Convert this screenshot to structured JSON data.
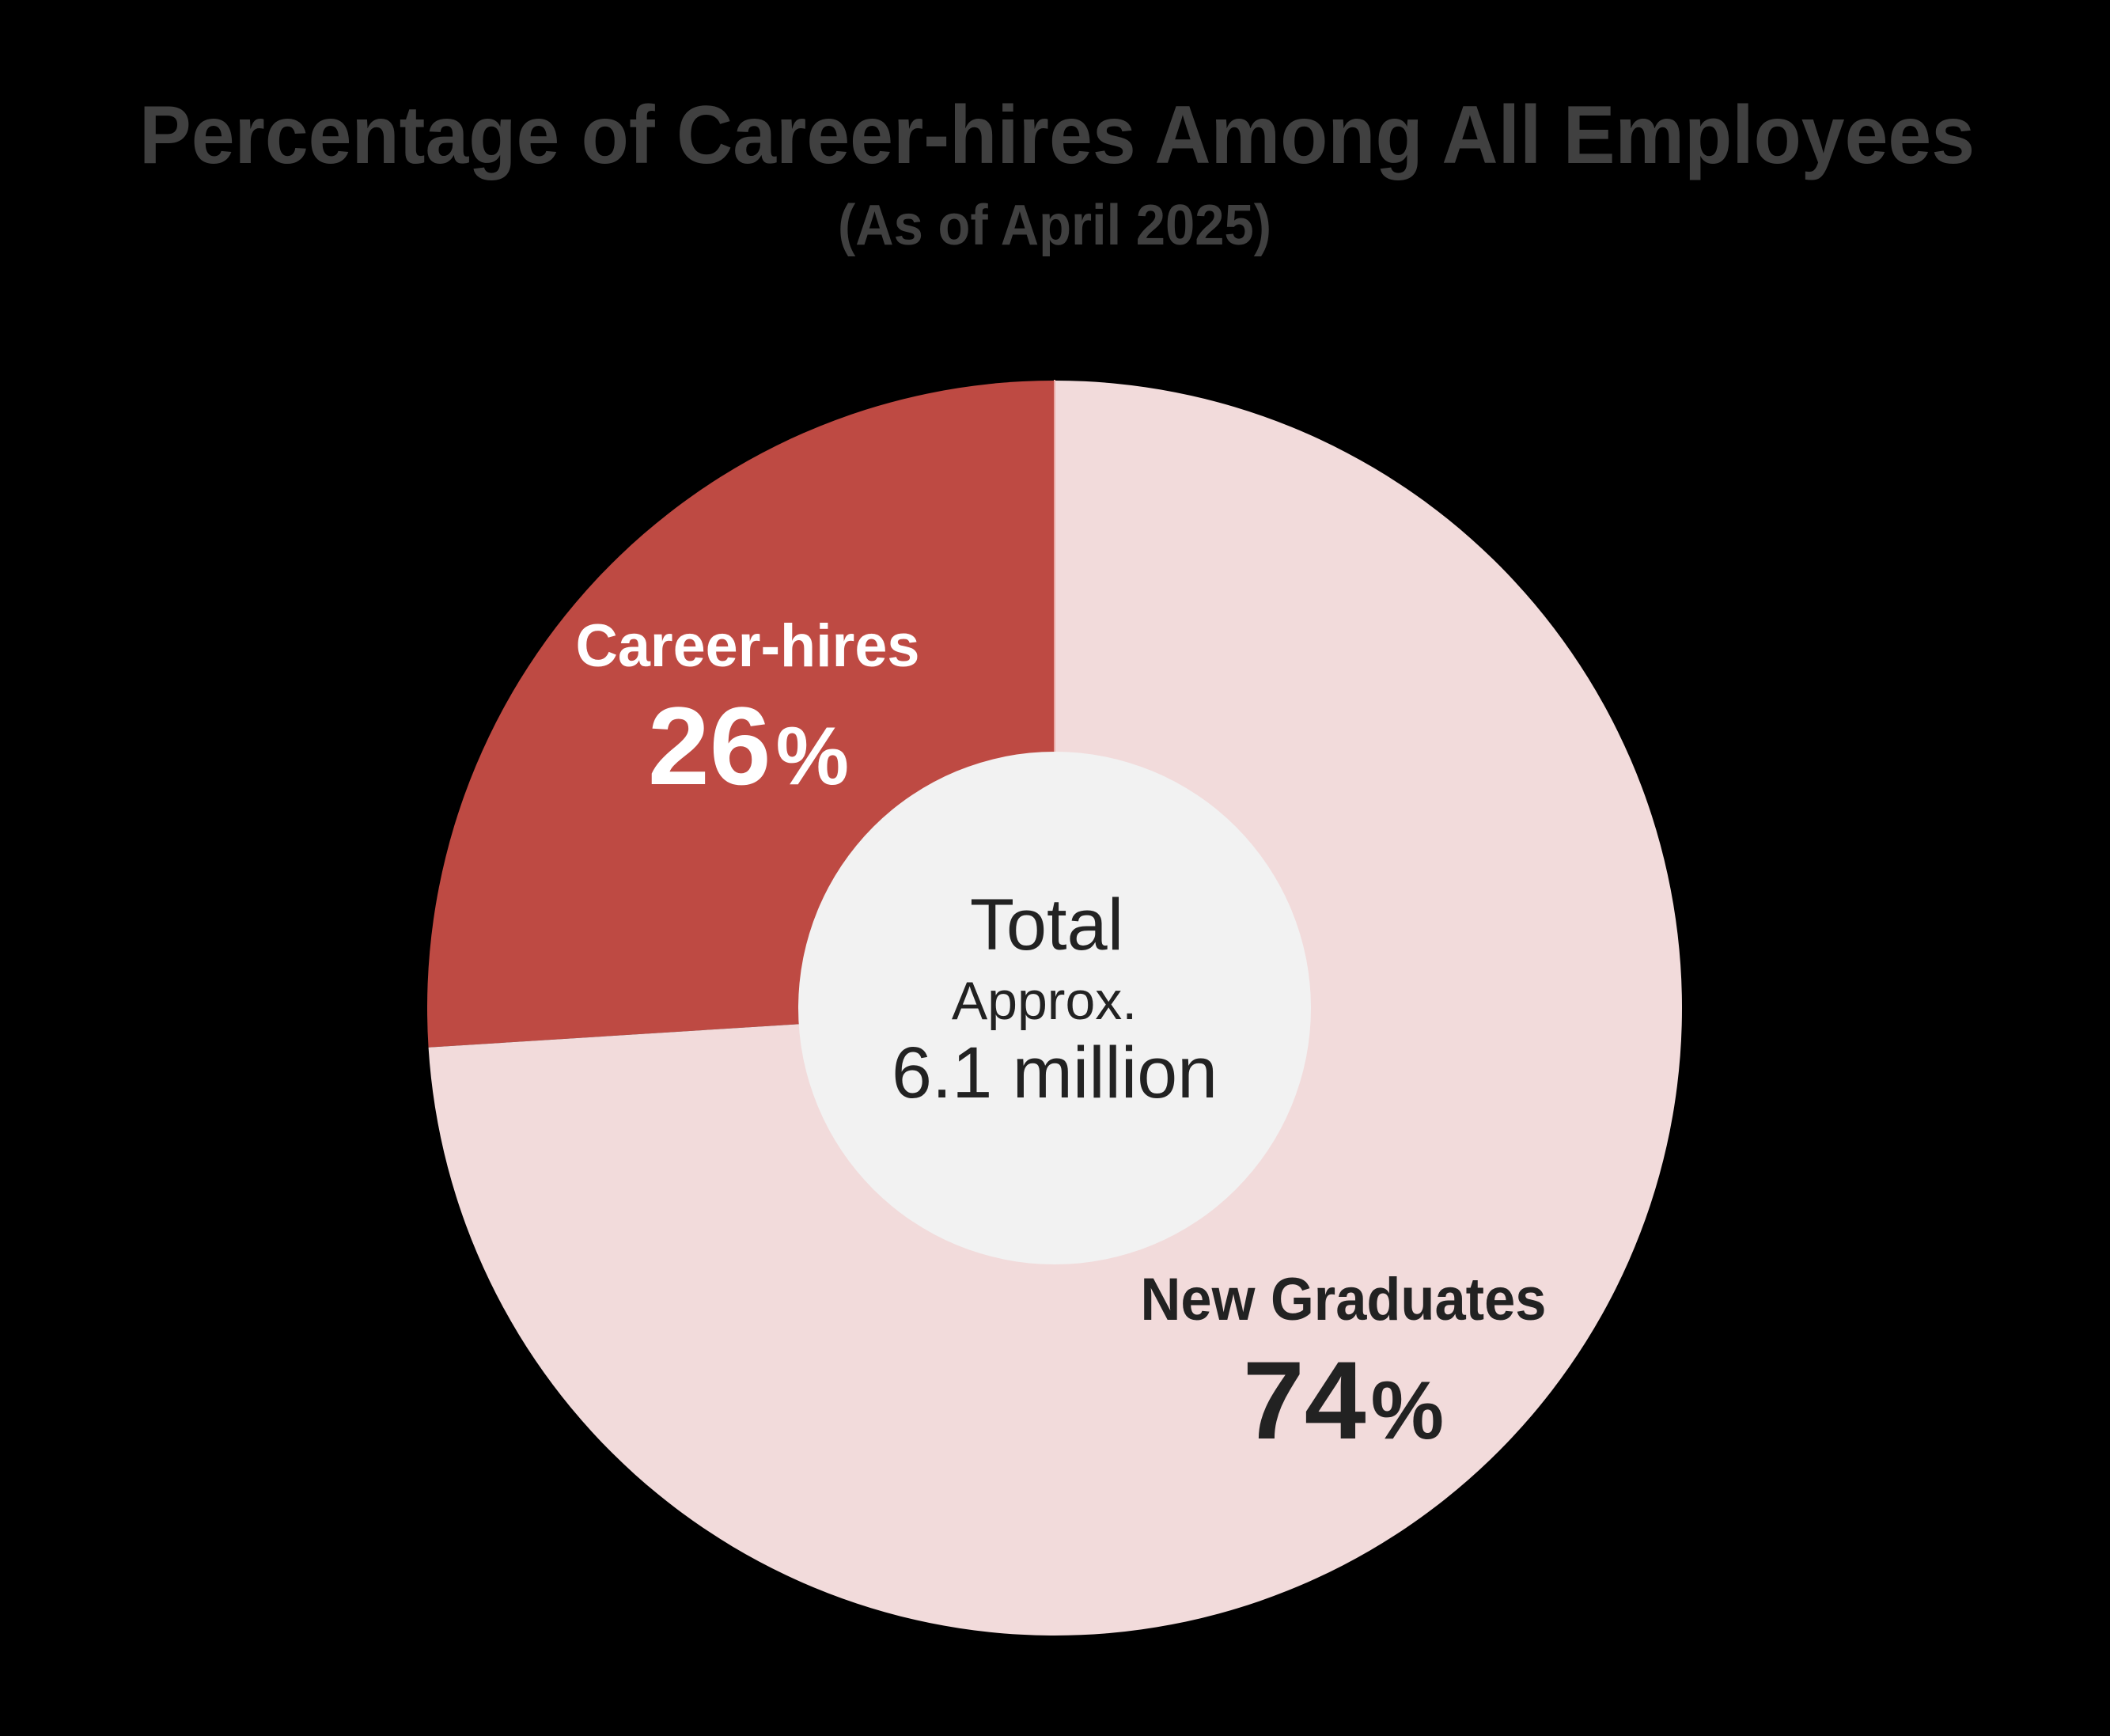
{
  "header": {
    "title": "Percentage of Career-hires Among All Employees",
    "subtitle": "(As of April 2025)"
  },
  "center": {
    "total_label": "Total",
    "approx_label": "Approx.",
    "value": "6.1 million"
  },
  "segments": [
    {
      "name": "Career-hires",
      "value_label": "26",
      "unit": "%",
      "color": "#BE4A43",
      "text_color": "#FFFFFF"
    },
    {
      "name": "New Graduates",
      "value_label": "74",
      "unit": "%",
      "color": "#F2DBDB",
      "text_color": "#222222"
    }
  ],
  "colors": {
    "background": "#000000",
    "title": "#404040",
    "center_fill": "#F2F2F2",
    "center_text": "#222222"
  },
  "chart_data": {
    "type": "pie",
    "variant": "donut",
    "title": "Percentage of Career-hires Among All Employees",
    "subtitle": "(As of April 2025)",
    "categories": [
      "Career-hires",
      "New Graduates"
    ],
    "values": [
      26,
      74
    ],
    "unit": "%",
    "colors": [
      "#BE4A43",
      "#F2DBDB"
    ],
    "center_annotation": "Total Approx. 6.1 million",
    "start_angle": "12 o'clock",
    "direction": "Career-hires counter-clockwise from top; New Graduates clockwise from top",
    "legend": "none (labels placed inside segments)"
  }
}
